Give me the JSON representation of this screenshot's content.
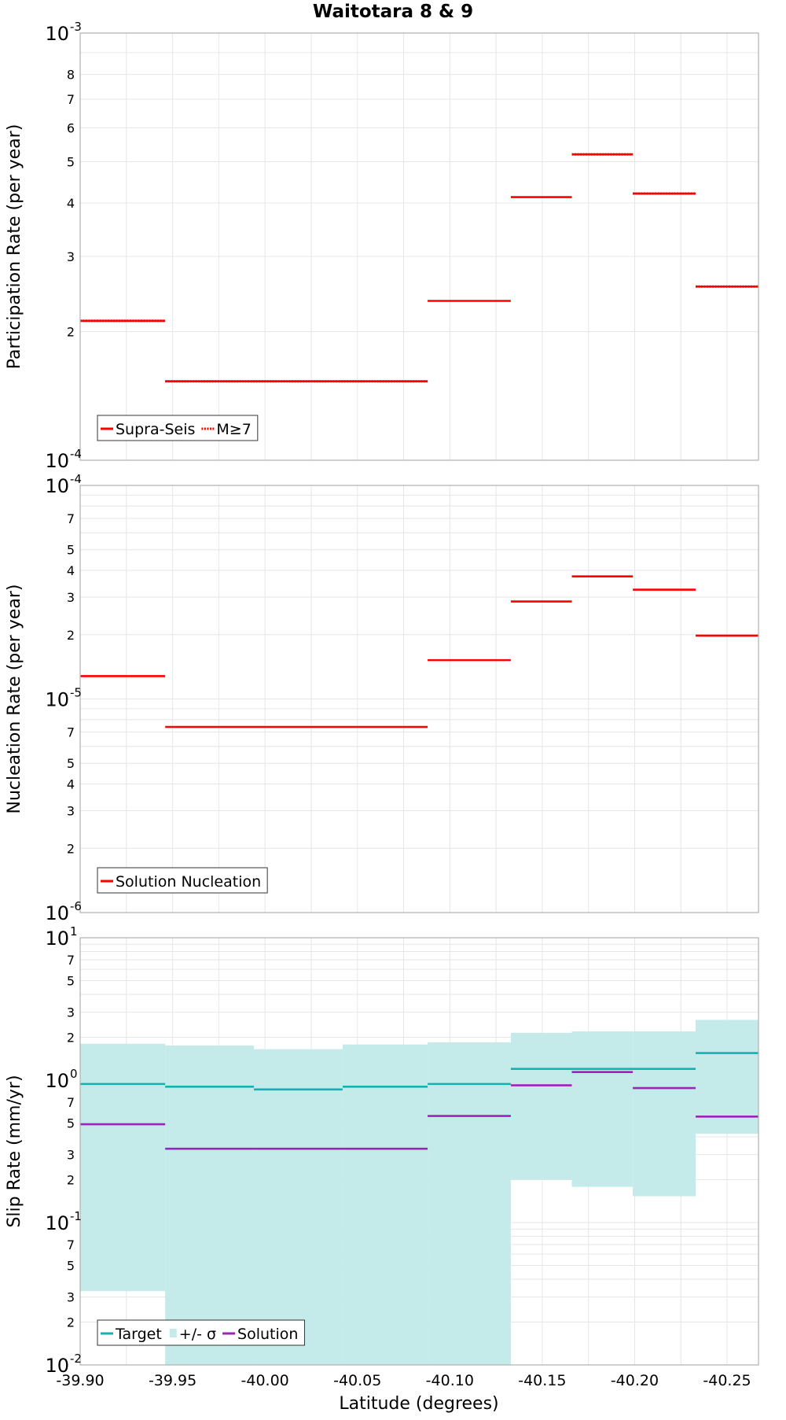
{
  "chart_data": {
    "type": "line",
    "title": "Waitotara 8 & 9",
    "xlabel": "Latitude (degrees)",
    "x_ticks": [
      "-39.90",
      "-39.95",
      "-40.00",
      "-40.05",
      "-40.10",
      "-40.15",
      "-40.20",
      "-40.25"
    ],
    "x_tick_values": [
      -39.9,
      -39.95,
      -40.0,
      -40.05,
      -40.1,
      -40.15,
      -40.2,
      -40.25
    ],
    "xlim": [
      -39.9,
      -40.267
    ],
    "grid": true,
    "panels": [
      {
        "ylabel": "Participation Rate (per year)",
        "scale": "log",
        "ylim": [
          0.0001,
          0.001
        ],
        "decade_labels": [
          {
            "base": "10",
            "exp": "-3",
            "value": 0.001
          },
          {
            "base": "10",
            "exp": "-4",
            "value": 0.0001
          }
        ],
        "minor_tick_labels": [
          {
            "label": "8",
            "value": 0.0008
          },
          {
            "label": "7",
            "value": 0.0007
          },
          {
            "label": "6",
            "value": 0.0006
          },
          {
            "label": "5",
            "value": 0.0005
          },
          {
            "label": "4",
            "value": 0.0004
          },
          {
            "label": "3",
            "value": 0.0003
          },
          {
            "label": "2",
            "value": 0.0002
          }
        ],
        "legend": {
          "position": "bottom-left",
          "items": [
            {
              "label": "Supra-Seis",
              "style": "solid",
              "color": "#ff0000"
            },
            {
              "label": "M≥7",
              "style": "dotted",
              "color": "#ff0000"
            }
          ]
        },
        "series": [
          {
            "name": "Supra-Seis",
            "color": "#ff0000",
            "style": "solid",
            "segments": [
              {
                "x0": -39.9,
                "x1": -39.946,
                "y": 0.000212
              },
              {
                "x0": -39.946,
                "x1": -40.088,
                "y": 0.000153
              },
              {
                "x0": -40.088,
                "x1": -40.133,
                "y": 0.000236
              },
              {
                "x0": -40.133,
                "x1": -40.166,
                "y": 0.000413
              },
              {
                "x0": -40.166,
                "x1": -40.199,
                "y": 0.00052
              },
              {
                "x0": -40.199,
                "x1": -40.233,
                "y": 0.000421
              },
              {
                "x0": -40.233,
                "x1": -40.267,
                "y": 0.000255
              }
            ]
          },
          {
            "name": "M≥7",
            "color": "#ff0000",
            "style": "dotted",
            "segments": [
              {
                "x0": -39.9,
                "x1": -39.946,
                "y": 0.000212
              },
              {
                "x0": -39.946,
                "x1": -40.088,
                "y": 0.000153
              },
              {
                "x0": -40.166,
                "x1": -40.199,
                "y": 0.00052
              },
              {
                "x0": -40.199,
                "x1": -40.233,
                "y": 0.000421
              },
              {
                "x0": -40.233,
                "x1": -40.267,
                "y": 0.000255
              }
            ]
          }
        ]
      },
      {
        "ylabel": "Nucleation Rate (per year)",
        "scale": "log",
        "ylim": [
          1e-06,
          0.0001
        ],
        "decade_labels": [
          {
            "base": "10",
            "exp": "-4",
            "value": 0.0001
          },
          {
            "base": "10",
            "exp": "-5",
            "value": 1e-05
          },
          {
            "base": "10",
            "exp": "-6",
            "value": 1e-06
          }
        ],
        "minor_tick_labels": [
          {
            "label": "7",
            "value": 7e-05
          },
          {
            "label": "5",
            "value": 5e-05
          },
          {
            "label": "4",
            "value": 4e-05
          },
          {
            "label": "3",
            "value": 3e-05
          },
          {
            "label": "2",
            "value": 2e-05
          },
          {
            "label": "7",
            "value": 7e-06
          },
          {
            "label": "5",
            "value": 5e-06
          },
          {
            "label": "4",
            "value": 4e-06
          },
          {
            "label": "3",
            "value": 3e-06
          },
          {
            "label": "2",
            "value": 2e-06
          }
        ],
        "legend": {
          "position": "bottom-left",
          "items": [
            {
              "label": "Solution Nucleation",
              "style": "solid",
              "color": "#ff0000"
            }
          ]
        },
        "series": [
          {
            "name": "Solution Nucleation",
            "color": "#ff0000",
            "style": "solid",
            "segments": [
              {
                "x0": -39.9,
                "x1": -39.946,
                "y": 1.28e-05
              },
              {
                "x0": -39.946,
                "x1": -40.088,
                "y": 7.4e-06
              },
              {
                "x0": -40.088,
                "x1": -40.133,
                "y": 1.52e-05
              },
              {
                "x0": -40.133,
                "x1": -40.166,
                "y": 2.86e-05
              },
              {
                "x0": -40.166,
                "x1": -40.199,
                "y": 3.75e-05
              },
              {
                "x0": -40.199,
                "x1": -40.233,
                "y": 3.25e-05
              },
              {
                "x0": -40.233,
                "x1": -40.267,
                "y": 1.98e-05
              }
            ]
          }
        ]
      },
      {
        "ylabel": "Slip Rate (mm/yr)",
        "scale": "log",
        "ylim": [
          0.01,
          10
        ],
        "decade_labels": [
          {
            "base": "10",
            "exp": "1",
            "value": 10
          },
          {
            "base": "10",
            "exp": "0",
            "value": 1
          },
          {
            "base": "10",
            "exp": "-1",
            "value": 0.1
          },
          {
            "base": "10",
            "exp": "-2",
            "value": 0.01
          }
        ],
        "minor_tick_labels": [
          {
            "label": "7",
            "value": 7
          },
          {
            "label": "5",
            "value": 5
          },
          {
            "label": "3",
            "value": 3
          },
          {
            "label": "2",
            "value": 2
          },
          {
            "label": "7",
            "value": 0.7
          },
          {
            "label": "5",
            "value": 0.5
          },
          {
            "label": "3",
            "value": 0.3
          },
          {
            "label": "2",
            "value": 0.2
          },
          {
            "label": "7",
            "value": 0.07
          },
          {
            "label": "5",
            "value": 0.05
          },
          {
            "label": "3",
            "value": 0.03
          },
          {
            "label": "2",
            "value": 0.02
          }
        ],
        "legend": {
          "position": "bottom-left",
          "items": [
            {
              "label": "Target",
              "style": "solid",
              "color": "#17b0b0"
            },
            {
              "label": "+/- σ",
              "style": "box",
              "color": "#c4ebea"
            },
            {
              "label": "Solution",
              "style": "solid",
              "color": "#a020c0"
            }
          ]
        },
        "bands": [
          {
            "x0": -39.9,
            "x1": -39.946,
            "lo": 0.033,
            "hi": 1.8
          },
          {
            "x0": -39.946,
            "x1": -39.994,
            "lo": 0.01,
            "hi": 1.75
          },
          {
            "x0": -39.994,
            "x1": -40.042,
            "lo": 0.01,
            "hi": 1.65
          },
          {
            "x0": -40.042,
            "x1": -40.088,
            "lo": 0.01,
            "hi": 1.78
          },
          {
            "x0": -40.088,
            "x1": -40.133,
            "lo": 0.01,
            "hi": 1.84
          },
          {
            "x0": -40.133,
            "x1": -40.166,
            "lo": 0.2,
            "hi": 2.15
          },
          {
            "x0": -40.166,
            "x1": -40.199,
            "lo": 0.178,
            "hi": 2.2
          },
          {
            "x0": -40.199,
            "x1": -40.233,
            "lo": 0.153,
            "hi": 2.2
          },
          {
            "x0": -40.233,
            "x1": -40.267,
            "lo": 0.42,
            "hi": 2.65
          }
        ],
        "series": [
          {
            "name": "Target",
            "color": "#17b0b0",
            "style": "solid",
            "segments": [
              {
                "x0": -39.9,
                "x1": -39.946,
                "y": 0.94
              },
              {
                "x0": -39.946,
                "x1": -39.994,
                "y": 0.9
              },
              {
                "x0": -39.994,
                "x1": -40.042,
                "y": 0.86
              },
              {
                "x0": -40.042,
                "x1": -40.088,
                "y": 0.9
              },
              {
                "x0": -40.088,
                "x1": -40.133,
                "y": 0.94
              },
              {
                "x0": -40.133,
                "x1": -40.199,
                "y": 1.2
              },
              {
                "x0": -40.199,
                "x1": -40.233,
                "y": 1.2
              },
              {
                "x0": -40.233,
                "x1": -40.267,
                "y": 1.55
              }
            ]
          },
          {
            "name": "Solution",
            "color": "#a020c0",
            "style": "solid",
            "segments": [
              {
                "x0": -39.9,
                "x1": -39.946,
                "y": 0.49
              },
              {
                "x0": -39.946,
                "x1": -40.088,
                "y": 0.33
              },
              {
                "x0": -40.088,
                "x1": -40.133,
                "y": 0.56
              },
              {
                "x0": -40.133,
                "x1": -40.166,
                "y": 0.92
              },
              {
                "x0": -40.166,
                "x1": -40.199,
                "y": 1.14
              },
              {
                "x0": -40.199,
                "x1": -40.233,
                "y": 0.88
              },
              {
                "x0": -40.233,
                "x1": -40.267,
                "y": 0.555
              }
            ]
          }
        ]
      }
    ]
  }
}
